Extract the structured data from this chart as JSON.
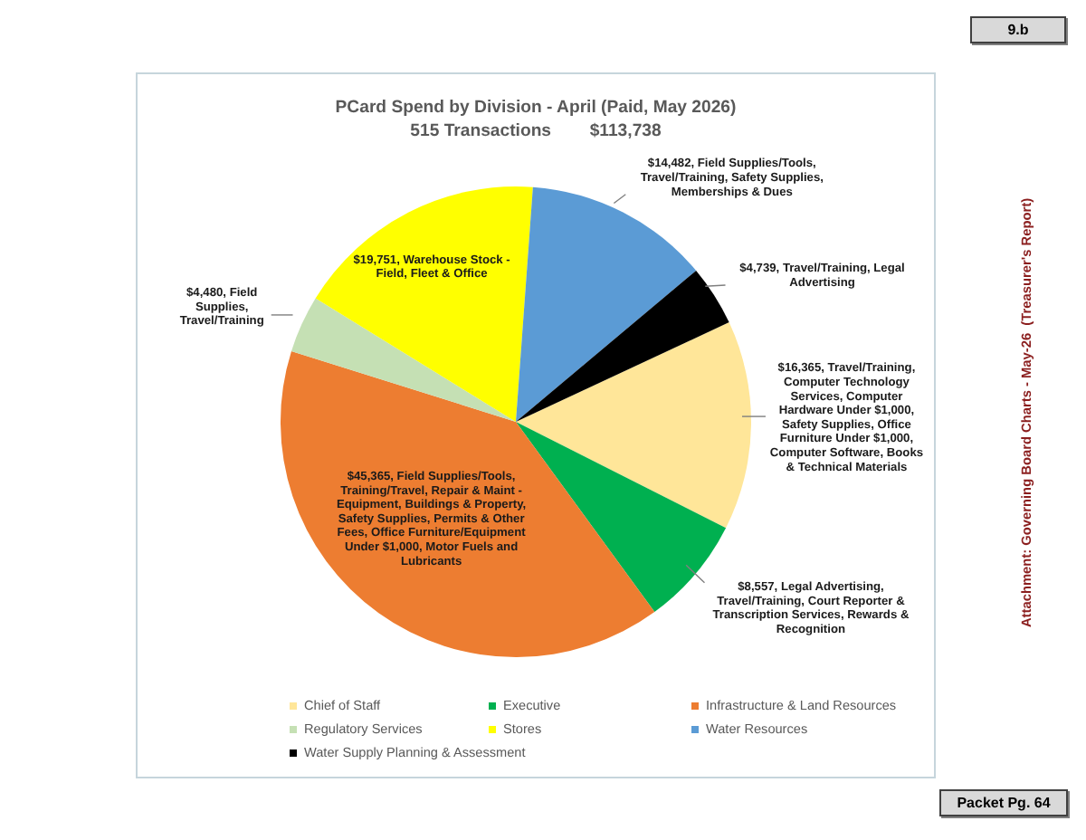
{
  "chart_data": {
    "type": "pie",
    "title": "PCard Spend by Division - April (Paid, May 2026)",
    "subtitle": "515 Transactions        $113,738",
    "categories": [
      "Chief of Staff",
      "Executive",
      "Infrastructure & Land Resources",
      "Regulatory Services",
      "Stores",
      "Water Resources",
      "Water Supply Planning & Assessment"
    ],
    "values": [
      16365,
      8557,
      45365,
      4480,
      19751,
      14482,
      4739
    ],
    "colors": [
      "#ffe699",
      "#00b050",
      "#ed7d31",
      "#c5e0b4",
      "#ffff00",
      "#5b9bd5",
      "#000000"
    ],
    "value_labels": [
      "$16,365, Travel/Training, Computer Technology Services, Computer Hardware Under $1,000, Safety Supplies, Office Furniture Under $1,000, Computer Software, Books & Technical Materials",
      "$8,557, Legal Advertising, Travel/Training, Court Reporter & Transcription Services, Rewards & Recognition",
      "$45,365, Field Supplies/Tools, Training/Travel, Repair & Maint - Equipment, Buildings & Property, Safety Supplies, Permits & Other Fees, Office Furniture/Equipment Under $1,000, Motor Fuels and Lubricants",
      "$4,480, Field Supplies, Travel/Training",
      "$19,751, Warehouse Stock - Field, Fleet & Office",
      "$14,482, Field Supplies/Tools, Travel/Training, Safety Supplies, Memberships & Dues",
      "$4,739, Travel/Training, Legal Advertising"
    ],
    "legend": "bottom",
    "annotations": [
      "9.b",
      "Attachment: Governing Board Charts - May-26  (Treasurer's Report)",
      "Packet Pg. 64"
    ]
  }
}
